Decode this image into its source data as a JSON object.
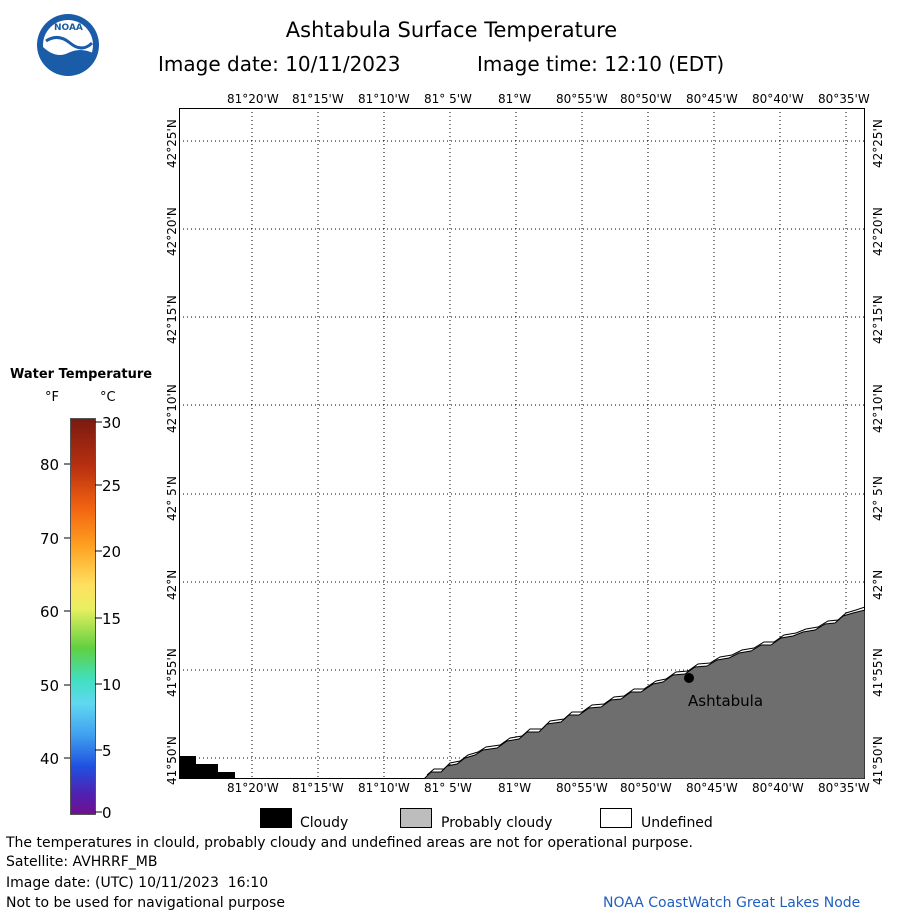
{
  "header": {
    "title": "Ashtabula Surface Temperature",
    "image_date": "Image date: 10/11/2023",
    "image_time": "Image time: 12:10 (EDT)"
  },
  "logo": {
    "text": "NOAA"
  },
  "map": {
    "lon_labels": [
      "81°20'W",
      "81°15'W",
      "81°10'W",
      "81° 5'W",
      "81°W",
      "80°55'W",
      "80°50'W",
      "80°45'W",
      "80°40'W",
      "80°35'W"
    ],
    "lat_labels": [
      "42°25'N",
      "42°20'N",
      "42°15'N",
      "42°10'N",
      "42° 5'N",
      "42°N",
      "41°55'N",
      "41°50'N"
    ],
    "place_label": "Ashtabula",
    "land_color": "#6e6e6e",
    "cloud_color": "#000000"
  },
  "legend": {
    "title": "Water Temperature",
    "unit_f": "°F",
    "unit_c": "°C",
    "f_ticks": [
      "80",
      "70",
      "60",
      "50",
      "40"
    ],
    "c_ticks": [
      "30",
      "25",
      "20",
      "15",
      "10",
      "5",
      "0"
    ]
  },
  "key": {
    "cloudy": "Cloudy",
    "probably_cloudy": "Probably cloudy",
    "undefined": "Undefined"
  },
  "footer": {
    "note": "The temperatures in clould, probably cloudy and undefined areas are not for operational purpose.",
    "satellite": "Satellite: AVHRRF_MB",
    "utc_date": "Image date: (UTC) 10/11/2023  16:10",
    "nav_warning": "Not to be used for navigational purpose",
    "node": "NOAA CoastWatch Great Lakes Node"
  }
}
